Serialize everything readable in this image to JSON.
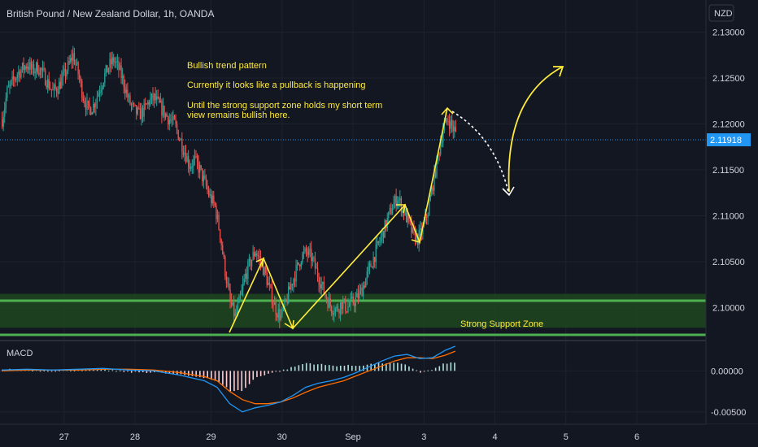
{
  "header": {
    "symbol_title": "British Pound / New Zealand Dollar, 1h, OANDA",
    "currency_badge": "NZD"
  },
  "colors": {
    "background": "#131722",
    "grid": "#1e222d",
    "up_candle": "#26a69a",
    "down_candle": "#ef5350",
    "annotation": "#ffeb3b",
    "support_fill": "#1e4620",
    "support_border": "#4caf50",
    "price_badge": "#2196f3",
    "macd_line": "#2196f3",
    "signal_line": "#ff6d00",
    "hist_up": "#b2dfdb",
    "hist_down": "#ffcdd2"
  },
  "chart_data": [
    {
      "type": "candlestick",
      "title": "British Pound / New Zealand Dollar, 1h, OANDA",
      "x_tick_labels": [
        "27",
        "28",
        "29",
        "30",
        "Sep",
        "3",
        "4",
        "5",
        "6"
      ],
      "y_tick_labels": [
        "2.13000",
        "2.12500",
        "2.12000",
        "2.11500",
        "2.11000",
        "2.10500",
        "2.10000"
      ],
      "ylim": [
        2.0965,
        2.1335
      ],
      "last_price": 2.11918,
      "last_price_label": "2.11918",
      "grid": true,
      "price_path": [
        [
          0,
          2.1205
        ],
        [
          4,
          2.1235
        ],
        [
          8,
          2.1245
        ],
        [
          12,
          2.1255
        ],
        [
          16,
          2.126
        ],
        [
          20,
          2.1265
        ],
        [
          24,
          2.1258
        ],
        [
          28,
          2.1262
        ],
        [
          32,
          2.1255
        ],
        [
          36,
          2.1245
        ],
        [
          40,
          2.1235
        ],
        [
          44,
          2.124
        ],
        [
          48,
          2.125
        ],
        [
          52,
          2.1262
        ],
        [
          56,
          2.1275
        ],
        [
          60,
          2.1255
        ],
        [
          64,
          2.123
        ],
        [
          68,
          2.1215
        ],
        [
          72,
          2.122
        ],
        [
          76,
          2.1235
        ],
        [
          80,
          2.125
        ],
        [
          84,
          2.1262
        ],
        [
          88,
          2.127
        ],
        [
          92,
          2.126
        ],
        [
          96,
          2.1245
        ],
        [
          100,
          2.1225
        ],
        [
          104,
          2.1215
        ],
        [
          108,
          2.121
        ],
        [
          112,
          2.1215
        ],
        [
          116,
          2.1225
        ],
        [
          120,
          2.1228
        ],
        [
          124,
          2.122
        ],
        [
          128,
          2.1212
        ],
        [
          132,
          2.1205
        ],
        [
          136,
          2.12
        ],
        [
          140,
          2.1185
        ],
        [
          144,
          2.117
        ],
        [
          148,
          2.1155
        ],
        [
          152,
          2.116
        ],
        [
          156,
          2.115
        ],
        [
          160,
          2.1135
        ],
        [
          164,
          2.112
        ],
        [
          168,
          2.111
        ],
        [
          172,
          2.108
        ],
        [
          176,
          2.104
        ],
        [
          180,
          2.1005
        ],
        [
          184,
          2.099
        ],
        [
          188,
          2.101
        ],
        [
          192,
          2.1035
        ],
        [
          196,
          2.105
        ],
        [
          200,
          2.1062
        ],
        [
          204,
          2.105
        ],
        [
          208,
          2.1035
        ],
        [
          212,
          2.1015
        ],
        [
          216,
          2.0998
        ],
        [
          220,
          2.099
        ],
        [
          224,
          2.1005
        ],
        [
          228,
          2.1025
        ],
        [
          232,
          2.104
        ],
        [
          236,
          2.1055
        ],
        [
          240,
          2.106
        ],
        [
          244,
          2.1055
        ],
        [
          248,
          2.104
        ],
        [
          252,
          2.1025
        ],
        [
          256,
          2.101
        ],
        [
          260,
          2.1
        ],
        [
          264,
          2.0998
        ],
        [
          268,
          2.1005
        ],
        [
          272,
          2.1
        ],
        [
          276,
          2.1005
        ],
        [
          280,
          2.101
        ],
        [
          284,
          2.102
        ],
        [
          288,
          2.1035
        ],
        [
          292,
          2.105
        ],
        [
          296,
          2.1065
        ],
        [
          300,
          2.108
        ],
        [
          304,
          2.1095
        ],
        [
          308,
          2.111
        ],
        [
          312,
          2.112
        ],
        [
          316,
          2.1108
        ],
        [
          320,
          2.1095
        ],
        [
          324,
          2.108
        ],
        [
          328,
          2.1075
        ],
        [
          332,
          2.1085
        ],
        [
          336,
          2.1105
        ],
        [
          340,
          2.1135
        ],
        [
          344,
          2.1165
        ],
        [
          348,
          2.1195
        ],
        [
          352,
          2.1205
        ],
        [
          356,
          2.1195
        ],
        [
          358,
          2.11918
        ]
      ],
      "annotations": [
        "Bullish trend pattern",
        "Currently it looks like a pullback is happening",
        "Until the strong support zone holds my short term",
        "view remains bullish here.",
        "Strong Support Zone"
      ],
      "support_zone": [
        2.0978,
        2.1015
      ]
    },
    {
      "type": "line",
      "title": "MACD",
      "y_tick_labels": [
        "0.00000",
        "-0.00500"
      ],
      "ylim": [
        -0.0065,
        0.0032
      ],
      "series": [
        {
          "name": "MACD",
          "points": [
            [
              0,
              0.0001
            ],
            [
              20,
              0.0002
            ],
            [
              40,
              0.0001
            ],
            [
              60,
              0.0002
            ],
            [
              80,
              0.0003
            ],
            [
              100,
              0.0001
            ],
            [
              120,
              0.0
            ],
            [
              140,
              -0.0005
            ],
            [
              160,
              -0.0012
            ],
            [
              170,
              -0.002
            ],
            [
              180,
              -0.004
            ],
            [
              190,
              -0.005
            ],
            [
              200,
              -0.0045
            ],
            [
              210,
              -0.0042
            ],
            [
              220,
              -0.0038
            ],
            [
              230,
              -0.003
            ],
            [
              240,
              -0.002
            ],
            [
              250,
              -0.0015
            ],
            [
              260,
              -0.0012
            ],
            [
              270,
              -0.0008
            ],
            [
              280,
              -0.0002
            ],
            [
              290,
              0.0005
            ],
            [
              300,
              0.0012
            ],
            [
              310,
              0.0018
            ],
            [
              320,
              0.002
            ],
            [
              330,
              0.0015
            ],
            [
              340,
              0.0016
            ],
            [
              350,
              0.0025
            ],
            [
              358,
              0.003
            ]
          ]
        },
        {
          "name": "Signal",
          "points": [
            [
              0,
              0.0
            ],
            [
              20,
              0.0001
            ],
            [
              40,
              0.0001
            ],
            [
              60,
              0.0001
            ],
            [
              80,
              0.0002
            ],
            [
              100,
              0.0002
            ],
            [
              120,
              0.0001
            ],
            [
              140,
              -0.0002
            ],
            [
              160,
              -0.0007
            ],
            [
              170,
              -0.0012
            ],
            [
              180,
              -0.0025
            ],
            [
              190,
              -0.0035
            ],
            [
              200,
              -0.004
            ],
            [
              210,
              -0.004
            ],
            [
              220,
              -0.0038
            ],
            [
              230,
              -0.0033
            ],
            [
              240,
              -0.0026
            ],
            [
              250,
              -0.002
            ],
            [
              260,
              -0.0016
            ],
            [
              270,
              -0.0012
            ],
            [
              280,
              -0.0006
            ],
            [
              290,
              0.0
            ],
            [
              300,
              0.0006
            ],
            [
              310,
              0.0012
            ],
            [
              320,
              0.0016
            ],
            [
              330,
              0.0016
            ],
            [
              340,
              0.0015
            ],
            [
              350,
              0.0019
            ],
            [
              358,
              0.0024
            ]
          ]
        }
      ]
    }
  ]
}
